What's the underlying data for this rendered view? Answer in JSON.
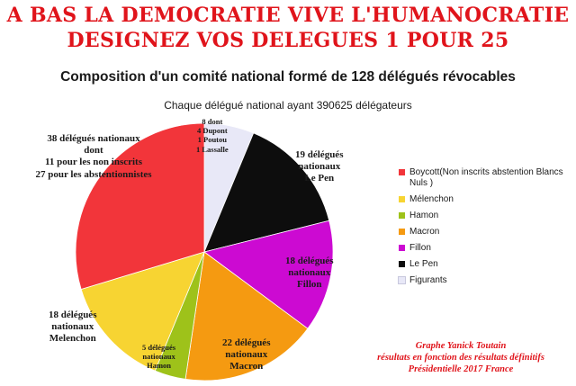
{
  "headline": {
    "line1": "A BAS LA DEMOCRATIE VIVE L'HUMANOCRATIE",
    "line2": "DESIGNEZ VOS DELEGUES 1 POUR 25"
  },
  "chart_data": {
    "type": "pie",
    "title": "Composition d'un comité national formé de 128 délégués révocables",
    "subtitle": "Chaque délégué national ayant 390625 délégateurs",
    "slices": [
      {
        "legend": "Figurants",
        "value": 8,
        "color": "#e8e8f7",
        "label_lines": [
          "8 dont",
          "4 Dupont",
          "1 Poutou",
          "1 Lassalle"
        ]
      },
      {
        "legend": "Le Pen",
        "value": 19,
        "color": "#0d0d0d",
        "label_lines": [
          "19 délégués",
          "nationaux",
          "Le Pen"
        ]
      },
      {
        "legend": "Fillon",
        "value": 18,
        "color": "#cc0ad2",
        "label_lines": [
          "18 délégués",
          "nationaux",
          "Fillon"
        ]
      },
      {
        "legend": "Macron",
        "value": 22,
        "color": "#f59a11",
        "label_lines": [
          "22 délégués",
          "nationaux",
          "Macron"
        ]
      },
      {
        "legend": "Hamon",
        "value": 5,
        "color": "#9ec21a",
        "label_lines": [
          "5 délégués",
          "nationaux",
          "Hamon"
        ]
      },
      {
        "legend": "Mélenchon",
        "value": 18,
        "color": "#f7d432",
        "label_lines": [
          "18 délégués",
          "nationaux",
          "Melenchon"
        ]
      },
      {
        "legend": "Boycott(Non inscrits   abstention   Blancs Nuls )",
        "value": 38,
        "color": "#f2353a",
        "label_lines": [
          "38 délégués nationaux",
          "dont",
          "11 pour les non inscrits",
          "27 pour les abstentionnistes"
        ]
      }
    ],
    "legend_order": [
      {
        "name": "Boycott(Non inscrits   abstention   Blancs Nuls )",
        "color": "#f2353a"
      },
      {
        "name": "Mélenchon",
        "color": "#f7d432"
      },
      {
        "name": "Hamon",
        "color": "#9ec21a"
      },
      {
        "name": "Macron",
        "color": "#f59a11"
      },
      {
        "name": "Fillon",
        "color": "#cc0ad2"
      },
      {
        "name": "Le Pen",
        "color": "#0d0d0d"
      },
      {
        "name": "Figurants",
        "color": "#e8e8f7"
      }
    ],
    "legend_position": "right"
  },
  "credit": {
    "line1": "Graphe Yanick Toutain",
    "line2": "résultats en fonction des résultats définitifs",
    "line3": "Présidentielle 2017 France"
  }
}
